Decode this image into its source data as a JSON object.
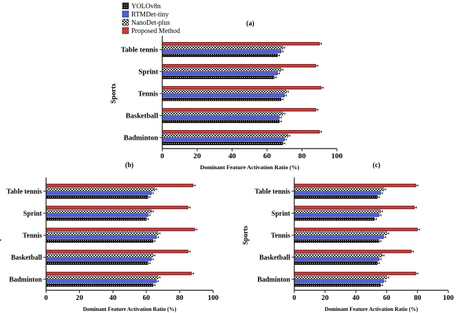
{
  "legend": {
    "items": [
      {
        "label": "YOLOv8n",
        "pattern": "dots"
      },
      {
        "label": "RTMDet-tiny",
        "pattern": "blue"
      },
      {
        "label": "NanoDet-plus",
        "pattern": "check"
      },
      {
        "label": "Proposed Method",
        "pattern": "red"
      }
    ]
  },
  "colors": {
    "rtmdet": "#4f5fe0",
    "proposed": "#c83b3b",
    "dark": "#1a1a1a"
  },
  "chart_data": [
    {
      "type": "bar",
      "orientation": "horizontal",
      "panel_label": "(a)",
      "ylabel": "Sports",
      "xlabel": "Dominant Feature Activation Ratio (%)",
      "xlim": [
        0,
        100
      ],
      "xticks": [
        "0",
        "20",
        "40",
        "60",
        "80",
        "100"
      ],
      "categories": [
        "Table tennis",
        "Sprint",
        "Tennis",
        "Basketball",
        "Badminton"
      ],
      "series": [
        {
          "name": "YOLOv8n",
          "values": [
            66,
            64,
            68,
            67,
            69
          ]
        },
        {
          "name": "RTMDet-tiny",
          "values": [
            68,
            66,
            70,
            67,
            70
          ]
        },
        {
          "name": "NanoDet-plus",
          "values": [
            69,
            68,
            71,
            69,
            72
          ]
        },
        {
          "name": "Proposed Method",
          "values": [
            90,
            88,
            91,
            88,
            90
          ]
        }
      ]
    },
    {
      "type": "bar",
      "orientation": "horizontal",
      "panel_label": "(b)",
      "ylabel": "Sports",
      "xlabel": "Dominant Feature Activation Ratio (%)",
      "xlim": [
        0,
        100
      ],
      "xticks": [
        "0",
        "20",
        "40",
        "60",
        "80",
        "100"
      ],
      "categories": [
        "Table tennis",
        "Sprint",
        "Tennis",
        "Basketball",
        "Badminton"
      ],
      "series": [
        {
          "name": "YOLOv8n",
          "values": [
            61,
            60,
            64,
            61,
            64
          ]
        },
        {
          "name": "RTMDet-tiny",
          "values": [
            63,
            61,
            66,
            63,
            66
          ]
        },
        {
          "name": "NanoDet-plus",
          "values": [
            65,
            63,
            67,
            64,
            67
          ]
        },
        {
          "name": "Proposed Method",
          "values": [
            88,
            85,
            89,
            85,
            87
          ]
        }
      ]
    },
    {
      "type": "bar",
      "orientation": "horizontal",
      "panel_label": "(c)",
      "ylabel": "Sports",
      "xlabel": "Dominant Feature Activation Ratio (%)",
      "xlim": [
        0,
        100
      ],
      "xticks": [
        "0",
        "20",
        "40",
        "60",
        "80",
        "100"
      ],
      "categories": [
        "Table tennis",
        "Sprint",
        "Tennis",
        "Basketball",
        "Badminton"
      ],
      "series": [
        {
          "name": "YOLOv8n",
          "values": [
            54,
            52,
            55,
            54,
            56
          ]
        },
        {
          "name": "RTMDet-tiny",
          "values": [
            56,
            55,
            58,
            55,
            58
          ]
        },
        {
          "name": "NanoDet-plus",
          "values": [
            58,
            56,
            60,
            57,
            60
          ]
        },
        {
          "name": "Proposed Method",
          "values": [
            79,
            78,
            80,
            76,
            79
          ]
        }
      ]
    }
  ]
}
